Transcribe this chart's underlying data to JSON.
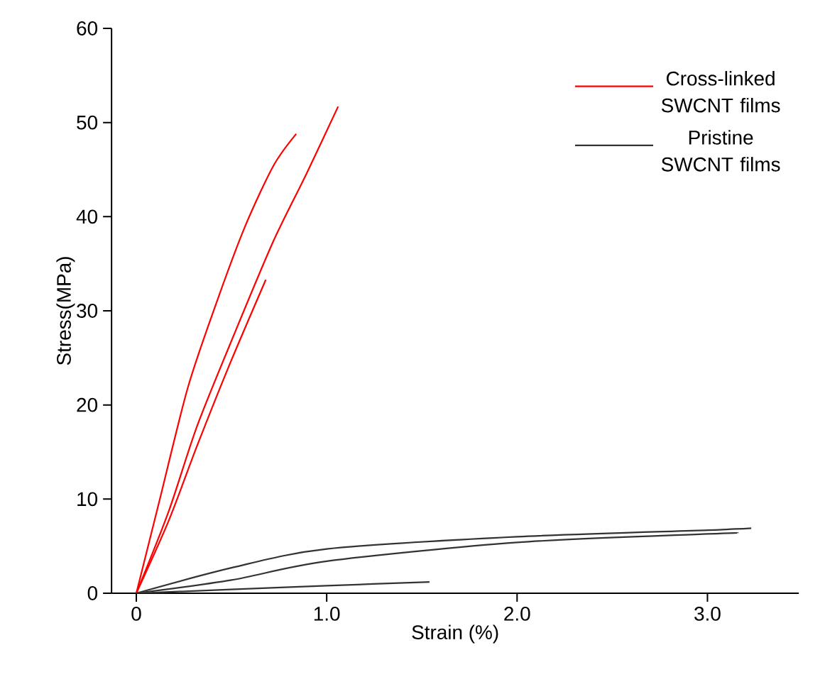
{
  "chart_data": {
    "type": "line",
    "xlabel": "Strain (%)",
    "ylabel": "Stress(MPa)",
    "xlim": [
      -0.13,
      3.48
    ],
    "ylim": [
      0,
      60
    ],
    "xticks": [
      0,
      {
        "value": 1,
        "label": "1.0"
      },
      {
        "value": 2,
        "label": "2.0"
      },
      {
        "value": 3,
        "label": "3.0"
      }
    ],
    "yticks": [
      0,
      10,
      20,
      30,
      40,
      50,
      60
    ],
    "legend": "top right",
    "series": [
      {
        "name": "Cross-linked SWCNT films",
        "color": "#ff0000",
        "x": [
          0,
          0.12,
          0.27,
          0.42,
          0.57,
          0.72,
          0.84
        ],
        "values": [
          0,
          9.7,
          21.8,
          30.8,
          38.9,
          45.4,
          48.8
        ]
      },
      {
        "color": "#ff0000",
        "x": [
          0,
          0.17,
          0.32,
          0.52,
          0.72,
          0.89,
          1.06
        ],
        "values": [
          0,
          8.7,
          17.8,
          27.8,
          37.4,
          44.4,
          51.7
        ]
      },
      {
        "color": "#ff0000",
        "x": [
          0,
          0.17,
          0.32,
          0.49,
          0.68
        ],
        "values": [
          0,
          7.7,
          15.7,
          24.3,
          33.3
        ]
      },
      {
        "name": "Pristine SWCNT films",
        "color": "#333333",
        "x": [
          0,
          0.5,
          1.0,
          2.0,
          3.0,
          3.23
        ],
        "values": [
          0,
          2.7,
          4.7,
          6.0,
          6.7,
          6.9
        ]
      },
      {
        "color": "#333333",
        "x": [
          0,
          0.5,
          1.0,
          2.0,
          3.0,
          3.16
        ],
        "values": [
          0,
          1.4,
          3.4,
          5.4,
          6.3,
          6.4
        ]
      },
      {
        "color": "#333333",
        "x": [
          0,
          0.5,
          1.0,
          1.54
        ],
        "values": [
          0,
          0.4,
          0.8,
          1.2
        ]
      }
    ]
  }
}
